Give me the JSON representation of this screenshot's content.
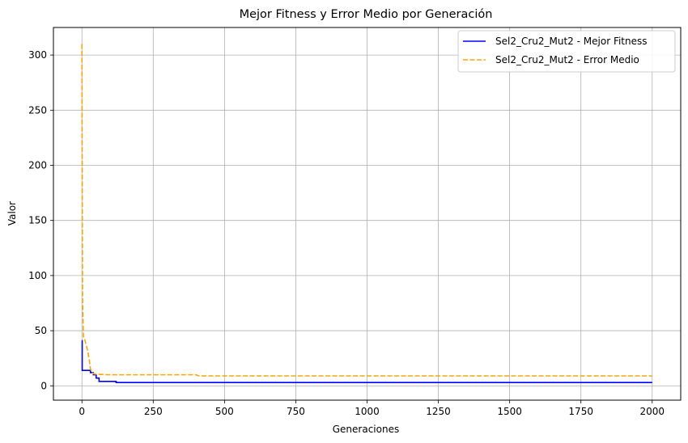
{
  "chart_data": {
    "type": "line",
    "title": "Mejor Fitness y Error Medio por Generación",
    "xlabel": "Generaciones",
    "ylabel": "Valor",
    "xlim": [
      -100,
      2100
    ],
    "ylim": [
      -13,
      325
    ],
    "xticks": [
      0,
      250,
      500,
      750,
      1000,
      1250,
      1500,
      1750,
      2000
    ],
    "yticks": [
      0,
      50,
      100,
      150,
      200,
      250,
      300
    ],
    "grid": true,
    "legend_position": "top-right",
    "series": [
      {
        "name": "Sel2_Cru2_Mut2 - Mejor Fitness",
        "color": "#0000ff",
        "style": "solid",
        "x": [
          0,
          1,
          1,
          30,
          30,
          40,
          40,
          50,
          50,
          60,
          60,
          120,
          120,
          2000
        ],
        "y": [
          41,
          41,
          14,
          14,
          12,
          12,
          10,
          10,
          7,
          7,
          4,
          4,
          3,
          3
        ]
      },
      {
        "name": "Sel2_Cru2_Mut2 - Error Medio",
        "color": "#ffa500",
        "style": "dashed",
        "x": [
          0,
          2,
          5,
          10,
          15,
          20,
          25,
          30,
          40,
          50,
          100,
          200,
          300,
          400,
          410,
          1000,
          2000
        ],
        "y": [
          310,
          80,
          45,
          42,
          37,
          32,
          25,
          15,
          11,
          10.5,
          10,
          10,
          10,
          10,
          9,
          9,
          9
        ]
      }
    ]
  }
}
